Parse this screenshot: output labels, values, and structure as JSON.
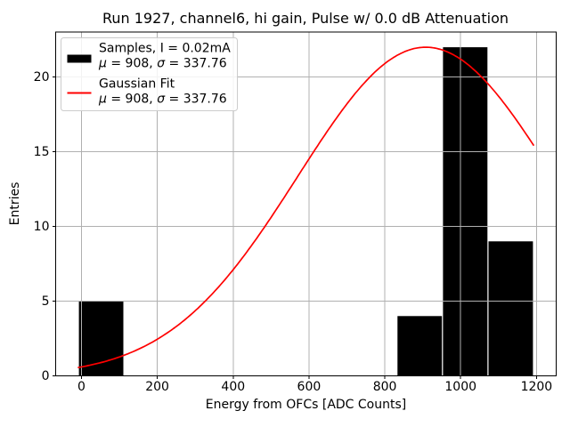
{
  "chart_data": {
    "type": "bar",
    "subtype": "histogram-with-gaussian-fit",
    "title": "Run 1927, channel6, hi gain, Pulse w/ 0.0 dB Attenuation",
    "xlabel": "Energy from OFCs [ADC Counts]",
    "ylabel": "Entries",
    "xlim": [
      -68,
      1252
    ],
    "ylim": [
      0,
      23.03
    ],
    "xticks": [
      0,
      200,
      400,
      600,
      800,
      1000,
      1200
    ],
    "yticks": [
      0,
      5,
      10,
      15,
      20
    ],
    "grid": true,
    "grid_over_bars": true,
    "grid_color": "#b0b0b0",
    "background_color": "#ffffff",
    "histogram": {
      "color": "#000000",
      "bin_edges": [
        -8,
        112,
        232,
        352,
        472,
        592,
        712,
        832,
        952,
        1072,
        1192
      ],
      "counts": [
        5,
        0,
        0,
        0,
        0,
        0,
        0,
        4,
        22,
        9
      ]
    },
    "gaussian_fit": {
      "color": "#ff0000",
      "mu": 908,
      "sigma": 337.76,
      "amplitude": 22,
      "x_start": -8,
      "x_end": 1192
    },
    "legend": {
      "location": "upper left",
      "border_color": "#cccccc",
      "entries": [
        {
          "handle": "patch",
          "color": "#000000",
          "label_lines": [
            "Samples, I = 0.02mA",
            "μ = 908, σ = 337.76"
          ]
        },
        {
          "handle": "line",
          "color": "#ff0000",
          "label_lines": [
            "Gaussian Fit",
            "μ = 908, σ = 337.76"
          ]
        }
      ]
    }
  }
}
